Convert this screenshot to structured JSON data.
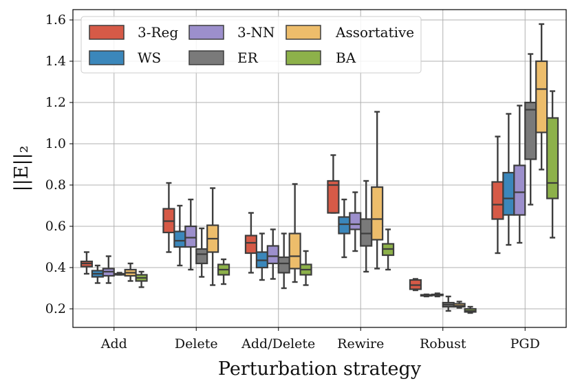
{
  "chart_data": {
    "type": "boxplot",
    "xlabel": "Perturbation strategy",
    "ylabel": "||E||₂",
    "ylim": [
      0.11,
      1.65
    ],
    "yticks": [
      0.2,
      0.4,
      0.6,
      0.8,
      1.0,
      1.2,
      1.4,
      1.6
    ],
    "ytick_labels": [
      "0.2",
      "0.4",
      "0.6",
      "0.8",
      "1.0",
      "1.2",
      "1.4",
      "1.6"
    ],
    "categories": [
      "Add",
      "Delete",
      "Add/Delete",
      "Rewire",
      "Robust",
      "PGD"
    ],
    "grid": true,
    "legend_position": "upper-left",
    "legend_columns": 3,
    "series": [
      {
        "name": "3-Reg",
        "color": "#d65a47",
        "boxes": [
          {
            "whislo": 0.37,
            "q1": 0.405,
            "med": 0.42,
            "q3": 0.43,
            "whishi": 0.475
          },
          {
            "whislo": 0.475,
            "q1": 0.57,
            "med": 0.625,
            "q3": 0.685,
            "whishi": 0.81
          },
          {
            "whislo": 0.375,
            "q1": 0.47,
            "med": 0.52,
            "q3": 0.555,
            "whishi": 0.665
          },
          {
            "whislo": 0.665,
            "q1": 0.665,
            "med": 0.8,
            "q3": 0.82,
            "whishi": 0.945
          },
          {
            "whislo": 0.29,
            "q1": 0.295,
            "med": 0.315,
            "q3": 0.34,
            "whishi": 0.345
          },
          {
            "whislo": 0.47,
            "q1": 0.635,
            "med": 0.705,
            "q3": 0.815,
            "whishi": 1.035
          }
        ]
      },
      {
        "name": "WS",
        "color": "#3b87bb",
        "boxes": [
          {
            "whislo": 0.325,
            "q1": 0.355,
            "med": 0.37,
            "q3": 0.385,
            "whishi": 0.41
          },
          {
            "whislo": 0.41,
            "q1": 0.5,
            "med": 0.53,
            "q3": 0.575,
            "whishi": 0.7
          },
          {
            "whislo": 0.34,
            "q1": 0.4,
            "med": 0.435,
            "q3": 0.475,
            "whishi": 0.565
          },
          {
            "whislo": 0.45,
            "q1": 0.565,
            "med": 0.61,
            "q3": 0.645,
            "whishi": 0.73
          },
          {
            "whislo": 0.26,
            "q1": 0.265,
            "med": 0.265,
            "q3": 0.268,
            "whishi": 0.27
          },
          {
            "whislo": 0.51,
            "q1": 0.655,
            "med": 0.735,
            "q3": 0.86,
            "whishi": 1.145
          }
        ]
      },
      {
        "name": "3-NN",
        "color": "#9c8fcc",
        "boxes": [
          {
            "whislo": 0.325,
            "q1": 0.36,
            "med": 0.38,
            "q3": 0.395,
            "whishi": 0.455
          },
          {
            "whislo": 0.39,
            "q1": 0.5,
            "med": 0.545,
            "q3": 0.6,
            "whishi": 0.73
          },
          {
            "whislo": 0.345,
            "q1": 0.42,
            "med": 0.455,
            "q3": 0.505,
            "whishi": 0.585
          },
          {
            "whislo": 0.48,
            "q1": 0.585,
            "med": 0.61,
            "q3": 0.665,
            "whishi": 0.765
          },
          {
            "whislo": 0.26,
            "q1": 0.265,
            "med": 0.267,
            "q3": 0.27,
            "whishi": 0.275
          },
          {
            "whislo": 0.52,
            "q1": 0.655,
            "med": 0.765,
            "q3": 0.895,
            "whishi": 1.185
          }
        ]
      },
      {
        "name": "ER",
        "color": "#7a7a7a",
        "boxes": [
          {
            "whislo": 0.365,
            "q1": 0.365,
            "med": 0.37,
            "q3": 0.37,
            "whishi": 0.375
          },
          {
            "whislo": 0.355,
            "q1": 0.42,
            "med": 0.465,
            "q3": 0.49,
            "whishi": 0.59
          },
          {
            "whislo": 0.3,
            "q1": 0.375,
            "med": 0.42,
            "q3": 0.45,
            "whishi": 0.565
          },
          {
            "whislo": 0.38,
            "q1": 0.505,
            "med": 0.565,
            "q3": 0.635,
            "whishi": 0.82
          },
          {
            "whislo": 0.19,
            "q1": 0.21,
            "med": 0.22,
            "q3": 0.23,
            "whishi": 0.26
          },
          {
            "whislo": 0.705,
            "q1": 0.925,
            "med": 1.165,
            "q3": 1.2,
            "whishi": 1.435
          }
        ]
      },
      {
        "name": "Assortative",
        "color": "#edbd6b",
        "boxes": [
          {
            "whislo": 0.335,
            "q1": 0.36,
            "med": 0.375,
            "q3": 0.39,
            "whishi": 0.42
          },
          {
            "whislo": 0.315,
            "q1": 0.475,
            "med": 0.54,
            "q3": 0.605,
            "whishi": 0.785
          },
          {
            "whislo": 0.33,
            "q1": 0.395,
            "med": 0.455,
            "q3": 0.565,
            "whishi": 0.805
          },
          {
            "whislo": 0.395,
            "q1": 0.535,
            "med": 0.635,
            "q3": 0.79,
            "whishi": 1.155
          },
          {
            "whislo": 0.205,
            "q1": 0.21,
            "med": 0.215,
            "q3": 0.225,
            "whishi": 0.235
          },
          {
            "whislo": 0.875,
            "q1": 1.055,
            "med": 1.265,
            "q3": 1.4,
            "whishi": 1.58
          }
        ]
      },
      {
        "name": "BA",
        "color": "#8db14a",
        "boxes": [
          {
            "whislo": 0.305,
            "q1": 0.335,
            "med": 0.35,
            "q3": 0.365,
            "whishi": 0.38
          },
          {
            "whislo": 0.32,
            "q1": 0.365,
            "med": 0.39,
            "q3": 0.415,
            "whishi": 0.44
          },
          {
            "whislo": 0.315,
            "q1": 0.365,
            "med": 0.39,
            "q3": 0.415,
            "whishi": 0.48
          },
          {
            "whislo": 0.39,
            "q1": 0.46,
            "med": 0.49,
            "q3": 0.515,
            "whishi": 0.585
          },
          {
            "whislo": 0.18,
            "q1": 0.185,
            "med": 0.19,
            "q3": 0.2,
            "whishi": 0.21
          },
          {
            "whislo": 0.545,
            "q1": 0.735,
            "med": 0.81,
            "q3": 1.125,
            "whishi": 1.255
          }
        ]
      }
    ]
  }
}
